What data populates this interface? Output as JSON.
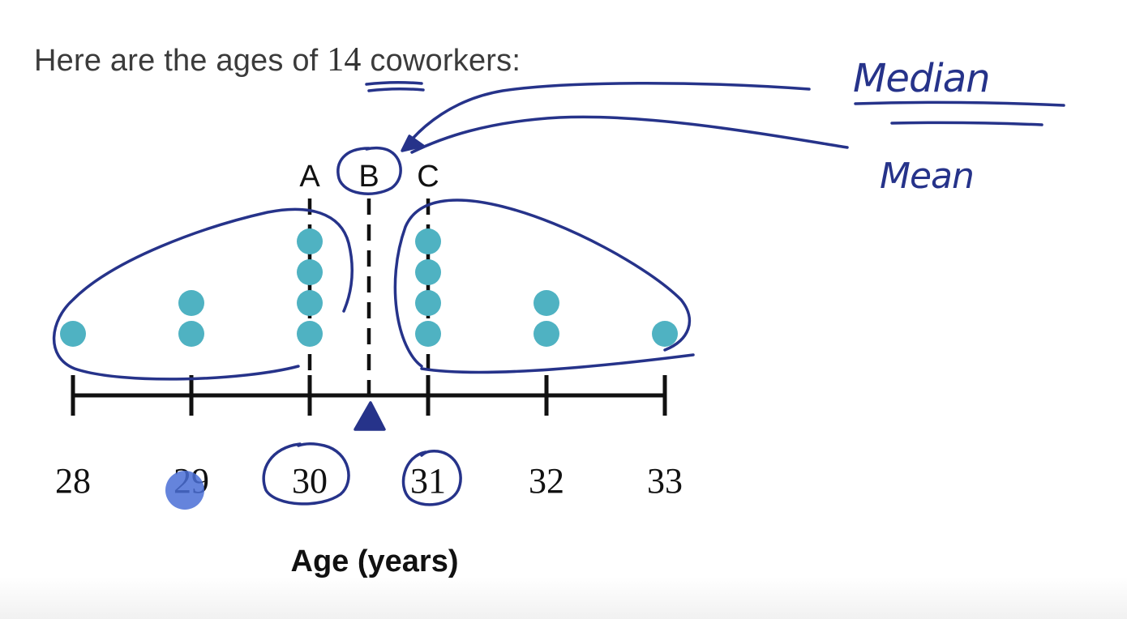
{
  "prompt": {
    "before": "Here are the ages of",
    "number": "14",
    "after": "coworkers:"
  },
  "colors": {
    "dot": "#4fb2c2",
    "ink": "#26338a",
    "axis": "#111111",
    "cursor": "#4a6fd6"
  },
  "chart_data": {
    "type": "dot-plot",
    "xlabel": "Age (years)",
    "x_ticks": [
      28,
      29,
      30,
      31,
      32,
      33
    ],
    "xlim": [
      28,
      33
    ],
    "points": [
      {
        "x": 28,
        "count": 1
      },
      {
        "x": 29,
        "count": 2
      },
      {
        "x": 30,
        "count": 4
      },
      {
        "x": 31,
        "count": 4
      },
      {
        "x": 32,
        "count": 2
      },
      {
        "x": 33,
        "count": 1
      }
    ],
    "reference_lines": [
      {
        "label": "A",
        "x": 30
      },
      {
        "label": "B",
        "x": 30.5
      },
      {
        "label": "C",
        "x": 31
      }
    ],
    "balance_point": 30.5,
    "annotations": [
      "Median",
      "Mean"
    ]
  }
}
